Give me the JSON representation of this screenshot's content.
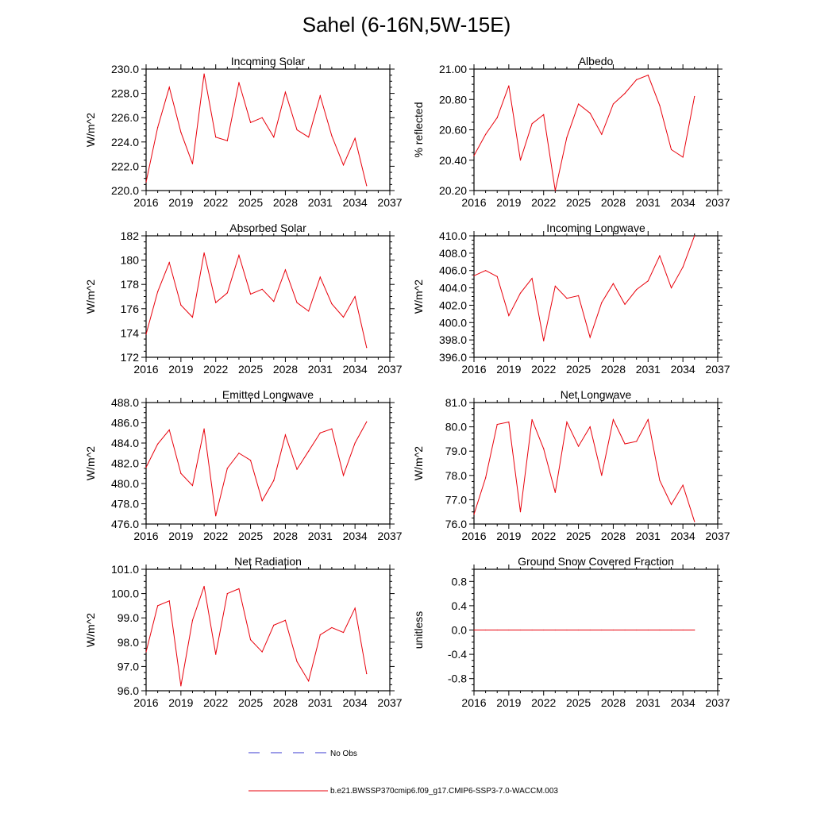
{
  "page_title": "Sahel (6-16N,5W-15E)",
  "legend": {
    "obs_label": "No Obs",
    "model_label": "b.e21.BWSSP370cmip6.f09_g17.CMIP6-SSP3-7.0-WACCM.003",
    "obs_color": "#3a3ad0",
    "model_color": "#e8000b"
  },
  "chart_data": [
    {
      "type": "line",
      "title": "Incoming Solar",
      "xlabel": "",
      "ylabel": "W/m^2",
      "xlim": [
        2016,
        2037
      ],
      "ylim": [
        220.0,
        230.0
      ],
      "xticks": [
        2016,
        2019,
        2022,
        2025,
        2028,
        2031,
        2034,
        2037
      ],
      "xtick_labels": [
        "2016",
        "2019",
        "2022",
        "2025",
        "2028",
        "2031",
        "2034",
        "2037"
      ],
      "yticks": [
        220,
        222,
        224,
        226,
        228,
        230
      ],
      "ytick_labels": [
        "220.0",
        "222.0",
        "224.0",
        "226.0",
        "228.0",
        "230.0"
      ],
      "series": [
        {
          "name": "b.e21.BWSSP370cmip6.f09_g17.CMIP6-SSP3-7.0-WACCM.003",
          "x": [
            2016,
            2017,
            2018,
            2019,
            2020,
            2021,
            2022,
            2023,
            2024,
            2025,
            2026,
            2027,
            2028,
            2029,
            2030,
            2031,
            2032,
            2033,
            2034,
            2035
          ],
          "values": [
            220.7,
            225.2,
            228.5,
            224.8,
            222.2,
            229.6,
            224.4,
            224.1,
            228.9,
            225.6,
            226.0,
            224.4,
            228.1,
            225.0,
            224.4,
            227.8,
            224.5,
            222.1,
            224.3,
            220.4
          ]
        }
      ]
    },
    {
      "type": "line",
      "title": "Albedo",
      "xlabel": "",
      "ylabel": "% reflected",
      "xlim": [
        2016,
        2037
      ],
      "ylim": [
        20.2,
        21.0
      ],
      "xticks": [
        2016,
        2019,
        2022,
        2025,
        2028,
        2031,
        2034,
        2037
      ],
      "xtick_labels": [
        "2016",
        "2019",
        "2022",
        "2025",
        "2028",
        "2031",
        "2034",
        "2037"
      ],
      "yticks": [
        20.2,
        20.4,
        20.6,
        20.8,
        21.0
      ],
      "ytick_labels": [
        "20.20",
        "20.40",
        "20.60",
        "20.80",
        "21.00"
      ],
      "series": [
        {
          "name": "b.e21.BWSSP370cmip6.f09_g17.CMIP6-SSP3-7.0-WACCM.003",
          "x": [
            2016,
            2017,
            2018,
            2019,
            2020,
            2021,
            2022,
            2023,
            2024,
            2025,
            2026,
            2027,
            2028,
            2029,
            2030,
            2031,
            2032,
            2033,
            2034,
            2035
          ],
          "values": [
            20.43,
            20.57,
            20.68,
            20.89,
            20.4,
            20.64,
            20.7,
            20.2,
            20.55,
            20.77,
            20.71,
            20.57,
            20.77,
            20.84,
            20.93,
            20.96,
            20.76,
            20.47,
            20.42,
            20.82
          ]
        }
      ]
    },
    {
      "type": "line",
      "title": "Absorbed Solar",
      "xlabel": "",
      "ylabel": "W/m^2",
      "xlim": [
        2016,
        2037
      ],
      "ylim": [
        172,
        182
      ],
      "xticks": [
        2016,
        2019,
        2022,
        2025,
        2028,
        2031,
        2034,
        2037
      ],
      "xtick_labels": [
        "2016",
        "2019",
        "2022",
        "2025",
        "2028",
        "2031",
        "2034",
        "2037"
      ],
      "yticks": [
        172,
        174,
        176,
        178,
        180,
        182
      ],
      "ytick_labels": [
        "172",
        "174",
        "176",
        "178",
        "180",
        "182"
      ],
      "series": [
        {
          "name": "b.e21.BWSSP370cmip6.f09_g17.CMIP6-SSP3-7.0-WACCM.003",
          "x": [
            2016,
            2017,
            2018,
            2019,
            2020,
            2021,
            2022,
            2023,
            2024,
            2025,
            2026,
            2027,
            2028,
            2029,
            2030,
            2031,
            2032,
            2033,
            2034,
            2035
          ],
          "values": [
            173.9,
            177.4,
            179.8,
            176.3,
            175.3,
            180.6,
            176.5,
            177.3,
            180.4,
            177.2,
            177.6,
            176.6,
            179.2,
            176.5,
            175.8,
            178.6,
            176.4,
            175.3,
            177.0,
            172.8
          ]
        }
      ]
    },
    {
      "type": "line",
      "title": "Incoming Longwave",
      "xlabel": "",
      "ylabel": "W/m^2",
      "xlim": [
        2016,
        2037
      ],
      "ylim": [
        396.0,
        410.0
      ],
      "xticks": [
        2016,
        2019,
        2022,
        2025,
        2028,
        2031,
        2034,
        2037
      ],
      "xtick_labels": [
        "2016",
        "2019",
        "2022",
        "2025",
        "2028",
        "2031",
        "2034",
        "2037"
      ],
      "yticks": [
        396,
        398,
        400,
        402,
        404,
        406,
        408,
        410
      ],
      "ytick_labels": [
        "396.0",
        "398.0",
        "400.0",
        "402.0",
        "404.0",
        "406.0",
        "408.0",
        "410.0"
      ],
      "series": [
        {
          "name": "b.e21.BWSSP370cmip6.f09_g17.CMIP6-SSP3-7.0-WACCM.003",
          "x": [
            2016,
            2017,
            2018,
            2019,
            2020,
            2021,
            2022,
            2023,
            2024,
            2025,
            2026,
            2027,
            2028,
            2029,
            2030,
            2031,
            2032,
            2033,
            2034,
            2035
          ],
          "values": [
            405.4,
            406.0,
            405.3,
            400.8,
            403.4,
            405.1,
            397.9,
            404.2,
            402.8,
            403.1,
            398.3,
            402.3,
            404.5,
            402.1,
            403.8,
            404.8,
            407.7,
            404.0,
            406.4,
            410.0
          ]
        }
      ]
    },
    {
      "type": "line",
      "title": "Emitted Longwave",
      "xlabel": "",
      "ylabel": "W/m^2",
      "xlim": [
        2016,
        2037
      ],
      "ylim": [
        476.0,
        488.0
      ],
      "xticks": [
        2016,
        2019,
        2022,
        2025,
        2028,
        2031,
        2034,
        2037
      ],
      "xtick_labels": [
        "2016",
        "2019",
        "2022",
        "2025",
        "2028",
        "2031",
        "2034",
        "2037"
      ],
      "yticks": [
        476,
        478,
        480,
        482,
        484,
        486,
        488
      ],
      "ytick_labels": [
        "476.0",
        "478.0",
        "480.0",
        "482.0",
        "484.0",
        "486.0",
        "488.0"
      ],
      "series": [
        {
          "name": "b.e21.BWSSP370cmip6.f09_g17.CMIP6-SSP3-7.0-WACCM.003",
          "x": [
            2016,
            2017,
            2018,
            2019,
            2020,
            2021,
            2022,
            2023,
            2024,
            2025,
            2026,
            2027,
            2028,
            2029,
            2030,
            2031,
            2032,
            2033,
            2034,
            2035
          ],
          "values": [
            481.6,
            483.9,
            485.3,
            481.0,
            479.8,
            485.4,
            476.8,
            481.5,
            483.0,
            482.3,
            478.3,
            480.3,
            484.8,
            481.4,
            483.2,
            485.0,
            485.4,
            480.8,
            484.0,
            486.1
          ]
        }
      ]
    },
    {
      "type": "line",
      "title": "Net Longwave",
      "xlabel": "",
      "ylabel": "W/m^2",
      "xlim": [
        2016,
        2037
      ],
      "ylim": [
        76.0,
        81.0
      ],
      "xticks": [
        2016,
        2019,
        2022,
        2025,
        2028,
        2031,
        2034,
        2037
      ],
      "xtick_labels": [
        "2016",
        "2019",
        "2022",
        "2025",
        "2028",
        "2031",
        "2034",
        "2037"
      ],
      "yticks": [
        76,
        77,
        78,
        79,
        80,
        81
      ],
      "ytick_labels": [
        "76.0",
        "77.0",
        "78.0",
        "79.0",
        "80.0",
        "81.0"
      ],
      "series": [
        {
          "name": "b.e21.BWSSP370cmip6.f09_g17.CMIP6-SSP3-7.0-WACCM.003",
          "x": [
            2016,
            2017,
            2018,
            2019,
            2020,
            2021,
            2022,
            2023,
            2024,
            2025,
            2026,
            2027,
            2028,
            2029,
            2030,
            2031,
            2032,
            2033,
            2034,
            2035
          ],
          "values": [
            76.4,
            77.9,
            80.1,
            80.2,
            76.5,
            80.3,
            79.1,
            77.3,
            80.2,
            79.2,
            80.0,
            78.0,
            80.3,
            79.3,
            79.4,
            80.3,
            77.8,
            76.8,
            77.6,
            76.1
          ]
        }
      ]
    },
    {
      "type": "line",
      "title": "Net Radiation",
      "xlabel": "",
      "ylabel": "W/m^2",
      "xlim": [
        2016,
        2037
      ],
      "ylim": [
        96.0,
        101.0
      ],
      "xticks": [
        2016,
        2019,
        2022,
        2025,
        2028,
        2031,
        2034,
        2037
      ],
      "xtick_labels": [
        "2016",
        "2019",
        "2022",
        "2025",
        "2028",
        "2031",
        "2034",
        "2037"
      ],
      "yticks": [
        96,
        97,
        98,
        99,
        100,
        101
      ],
      "ytick_labels": [
        "96.0",
        "97.0",
        "98.0",
        "99.0",
        "100.0",
        "101.0"
      ],
      "series": [
        {
          "name": "b.e21.BWSSP370cmip6.f09_g17.CMIP6-SSP3-7.0-WACCM.003",
          "x": [
            2016,
            2017,
            2018,
            2019,
            2020,
            2021,
            2022,
            2023,
            2024,
            2025,
            2026,
            2027,
            2028,
            2029,
            2030,
            2031,
            2032,
            2033,
            2034,
            2035
          ],
          "values": [
            97.6,
            99.5,
            99.7,
            96.2,
            98.9,
            100.3,
            97.5,
            100.0,
            100.2,
            98.1,
            97.6,
            98.7,
            98.9,
            97.2,
            96.4,
            98.3,
            98.6,
            98.4,
            99.4,
            96.7
          ]
        }
      ]
    },
    {
      "type": "line",
      "title": "Ground Snow Covered Fraction",
      "xlabel": "",
      "ylabel": "unitless",
      "xlim": [
        2016,
        2037
      ],
      "ylim": [
        -1.0,
        1.0
      ],
      "xticks": [
        2016,
        2019,
        2022,
        2025,
        2028,
        2031,
        2034,
        2037
      ],
      "xtick_labels": [
        "2016",
        "2019",
        "2022",
        "2025",
        "2028",
        "2031",
        "2034",
        "2037"
      ],
      "yticks": [
        -0.8,
        -0.4,
        0.0,
        0.4,
        0.8
      ],
      "ytick_labels": [
        "-0.8",
        "-0.4",
        "0.0",
        "0.4",
        "0.8"
      ],
      "series": [
        {
          "name": "b.e21.BWSSP370cmip6.f09_g17.CMIP6-SSP3-7.0-WACCM.003",
          "x": [
            2016,
            2017,
            2018,
            2019,
            2020,
            2021,
            2022,
            2023,
            2024,
            2025,
            2026,
            2027,
            2028,
            2029,
            2030,
            2031,
            2032,
            2033,
            2034,
            2035
          ],
          "values": [
            0,
            0,
            0,
            0,
            0,
            0,
            0,
            0,
            0,
            0,
            0,
            0,
            0,
            0,
            0,
            0,
            0,
            0,
            0,
            0
          ]
        }
      ]
    }
  ]
}
